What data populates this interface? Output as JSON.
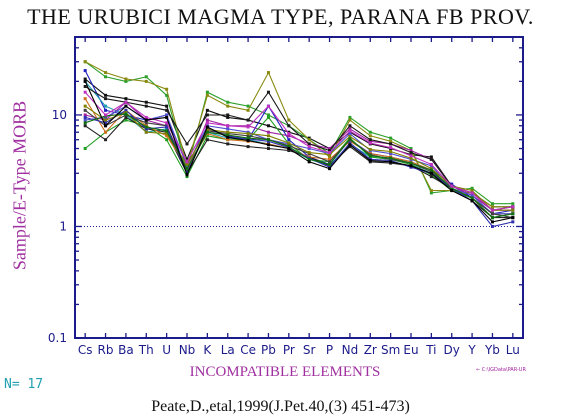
{
  "title": "THE URUBICI MAGMA TYPE, PARANA FB PROV.",
  "n_label": "N= 17",
  "file_label": "← C:\\IGData\\PAR-UR",
  "citation": "Peate,D.,etal,1999(J.Pet.40,(3) 451-473)",
  "colors": {
    "axis": "#1b1b8a",
    "label": "#a030a0",
    "nlabel": "#20a0b0",
    "reference_line": "#2020a0"
  },
  "chart_data": {
    "type": "line",
    "yscale": "log",
    "ylim": [
      0.1,
      50
    ],
    "yticks": [
      0.1,
      1,
      10
    ],
    "ytick_labels": [
      "0.1",
      "1",
      "10"
    ],
    "xlabel": "INCOMPATIBLE ELEMENTS",
    "ylabel": "Sample/E-Type MORB",
    "categories": [
      "Cs",
      "Rb",
      "Ba",
      "Th",
      "U",
      "Nb",
      "K",
      "La",
      "Ce",
      "Pb",
      "Pr",
      "Sr",
      "P",
      "Nd",
      "Zr",
      "Sm",
      "Eu",
      "Ti",
      "Dy",
      "Y",
      "Yb",
      "Lu"
    ],
    "reference_line": 1,
    "grid": false,
    "legend": "none",
    "series": [
      {
        "color": "#111111",
        "values": [
          21,
          15,
          14,
          13,
          12,
          4.0,
          11,
          9.5,
          9.0,
          8.0,
          7.0,
          6.2,
          5.0,
          7.0,
          5.5,
          5.0,
          4.4,
          4.2,
          2.3,
          2.0,
          1.5,
          1.5
        ]
      },
      {
        "color": "#2aa02a",
        "values": [
          30,
          22,
          20,
          22,
          15,
          3.2,
          16,
          13,
          12,
          10,
          8.0,
          6.0,
          4.5,
          9.5,
          7.0,
          6.2,
          5.0,
          2.0,
          2.1,
          2.2,
          1.6,
          1.6
        ]
      },
      {
        "color": "#8a8a10",
        "values": [
          30,
          24,
          21,
          20,
          17,
          3.5,
          15,
          12,
          11,
          24,
          9.0,
          6.0,
          4.2,
          9.0,
          6.5,
          5.8,
          4.8,
          2.1,
          2.1,
          2.0,
          1.5,
          1.5
        ]
      },
      {
        "color": "#2020c0",
        "values": [
          25,
          11,
          10,
          9.0,
          10,
          3.0,
          7.5,
          6.5,
          6.0,
          12,
          6.0,
          4.2,
          3.6,
          6.0,
          4.5,
          4.2,
          3.8,
          3.2,
          2.4,
          1.8,
          1.3,
          1.4
        ]
      },
      {
        "color": "#20a0b0",
        "values": [
          20,
          12,
          10,
          7.0,
          7.5,
          3.4,
          7.0,
          6.2,
          6.0,
          5.5,
          5.0,
          4.0,
          3.5,
          5.5,
          4.2,
          4.0,
          3.6,
          3.0,
          2.2,
          1.8,
          1.3,
          1.3
        ]
      },
      {
        "color": "#a020a0",
        "values": [
          10,
          9.0,
          13,
          9.0,
          8.0,
          3.2,
          9.0,
          8.0,
          8.0,
          7.0,
          6.5,
          5.5,
          5.0,
          7.5,
          5.8,
          5.5,
          4.8,
          4.0,
          2.3,
          1.9,
          1.4,
          1.4
        ]
      },
      {
        "color": "#20a020",
        "values": [
          5.0,
          7.0,
          9.0,
          8.0,
          6.0,
          2.8,
          6.5,
          6.0,
          6.0,
          9.5,
          5.5,
          4.0,
          3.8,
          6.2,
          4.2,
          4.0,
          3.6,
          2.9,
          2.1,
          1.8,
          1.2,
          1.3
        ]
      },
      {
        "color": "#222222",
        "values": [
          8.0,
          6.0,
          9.5,
          7.5,
          7.0,
          3.0,
          6.0,
          5.5,
          5.2,
          5.0,
          4.8,
          4.2,
          3.5,
          5.2,
          3.8,
          3.7,
          3.5,
          2.8,
          2.2,
          1.7,
          1.2,
          1.2
        ]
      },
      {
        "color": "#d07020",
        "values": [
          14,
          7.0,
          11,
          8.0,
          6.5,
          3.4,
          6.8,
          6.0,
          5.8,
          5.5,
          5.0,
          4.2,
          4.0,
          5.8,
          4.5,
          4.2,
          3.8,
          3.2,
          2.2,
          1.8,
          1.3,
          1.3
        ]
      },
      {
        "color": "#5050d0",
        "values": [
          9.0,
          9.5,
          12,
          9.0,
          10,
          3.5,
          8.0,
          7.5,
          7.0,
          6.0,
          5.5,
          5.0,
          4.5,
          6.8,
          4.8,
          4.5,
          4.0,
          3.5,
          2.2,
          1.9,
          1.3,
          1.3
        ]
      },
      {
        "color": "#1a1a1a",
        "values": [
          18,
          14,
          13,
          12,
          11,
          5.5,
          10,
          10,
          9.0,
          16,
          8.0,
          5.5,
          4.8,
          8.0,
          6.0,
          5.5,
          4.6,
          4.0,
          2.3,
          2.0,
          1.4,
          1.5
        ]
      },
      {
        "color": "#404040",
        "values": [
          11,
          8.0,
          10,
          8.5,
          8.0,
          3.1,
          7.2,
          6.8,
          6.5,
          6.0,
          5.3,
          4.5,
          3.8,
          6.0,
          4.4,
          4.0,
          3.7,
          3.1,
          2.2,
          1.8,
          1.3,
          1.2
        ]
      },
      {
        "color": "#3030b0",
        "values": [
          9.5,
          8.5,
          11,
          7.5,
          7.8,
          3.0,
          7.6,
          6.4,
          6.1,
          5.8,
          5.1,
          4.1,
          3.4,
          5.6,
          4.0,
          3.9,
          3.4,
          3.0,
          2.2,
          1.7,
          1.0,
          1.1
        ]
      },
      {
        "color": "#808000",
        "values": [
          12,
          9.0,
          10.5,
          7.0,
          6.8,
          3.6,
          7.4,
          7.0,
          6.8,
          6.5,
          5.6,
          4.6,
          4.4,
          6.4,
          4.9,
          4.7,
          4.1,
          3.3,
          2.3,
          2.1,
          1.4,
          1.4
        ]
      },
      {
        "color": "#107010",
        "values": [
          8.5,
          9.8,
          10.2,
          7.8,
          7.2,
          3.3,
          7.0,
          6.6,
          6.2,
          6.0,
          5.2,
          4.0,
          3.6,
          6.1,
          4.3,
          4.1,
          3.7,
          3.2,
          2.2,
          1.8,
          1.2,
          1.3
        ]
      },
      {
        "color": "#c030c0",
        "values": [
          16,
          10,
          13,
          9.5,
          8.5,
          3.8,
          8.5,
          8.0,
          7.8,
          12,
          6.8,
          5.2,
          4.6,
          7.2,
          5.6,
          5.1,
          4.3,
          3.6,
          2.3,
          2.0,
          1.4,
          1.5
        ]
      },
      {
        "color": "#000000",
        "values": [
          20,
          8.0,
          12,
          9.0,
          9.5,
          2.9,
          7.8,
          6.3,
          5.9,
          5.4,
          5.0,
          3.8,
          3.3,
          5.4,
          3.9,
          3.8,
          3.5,
          3.0,
          2.1,
          1.7,
          1.1,
          1.2
        ]
      }
    ]
  }
}
